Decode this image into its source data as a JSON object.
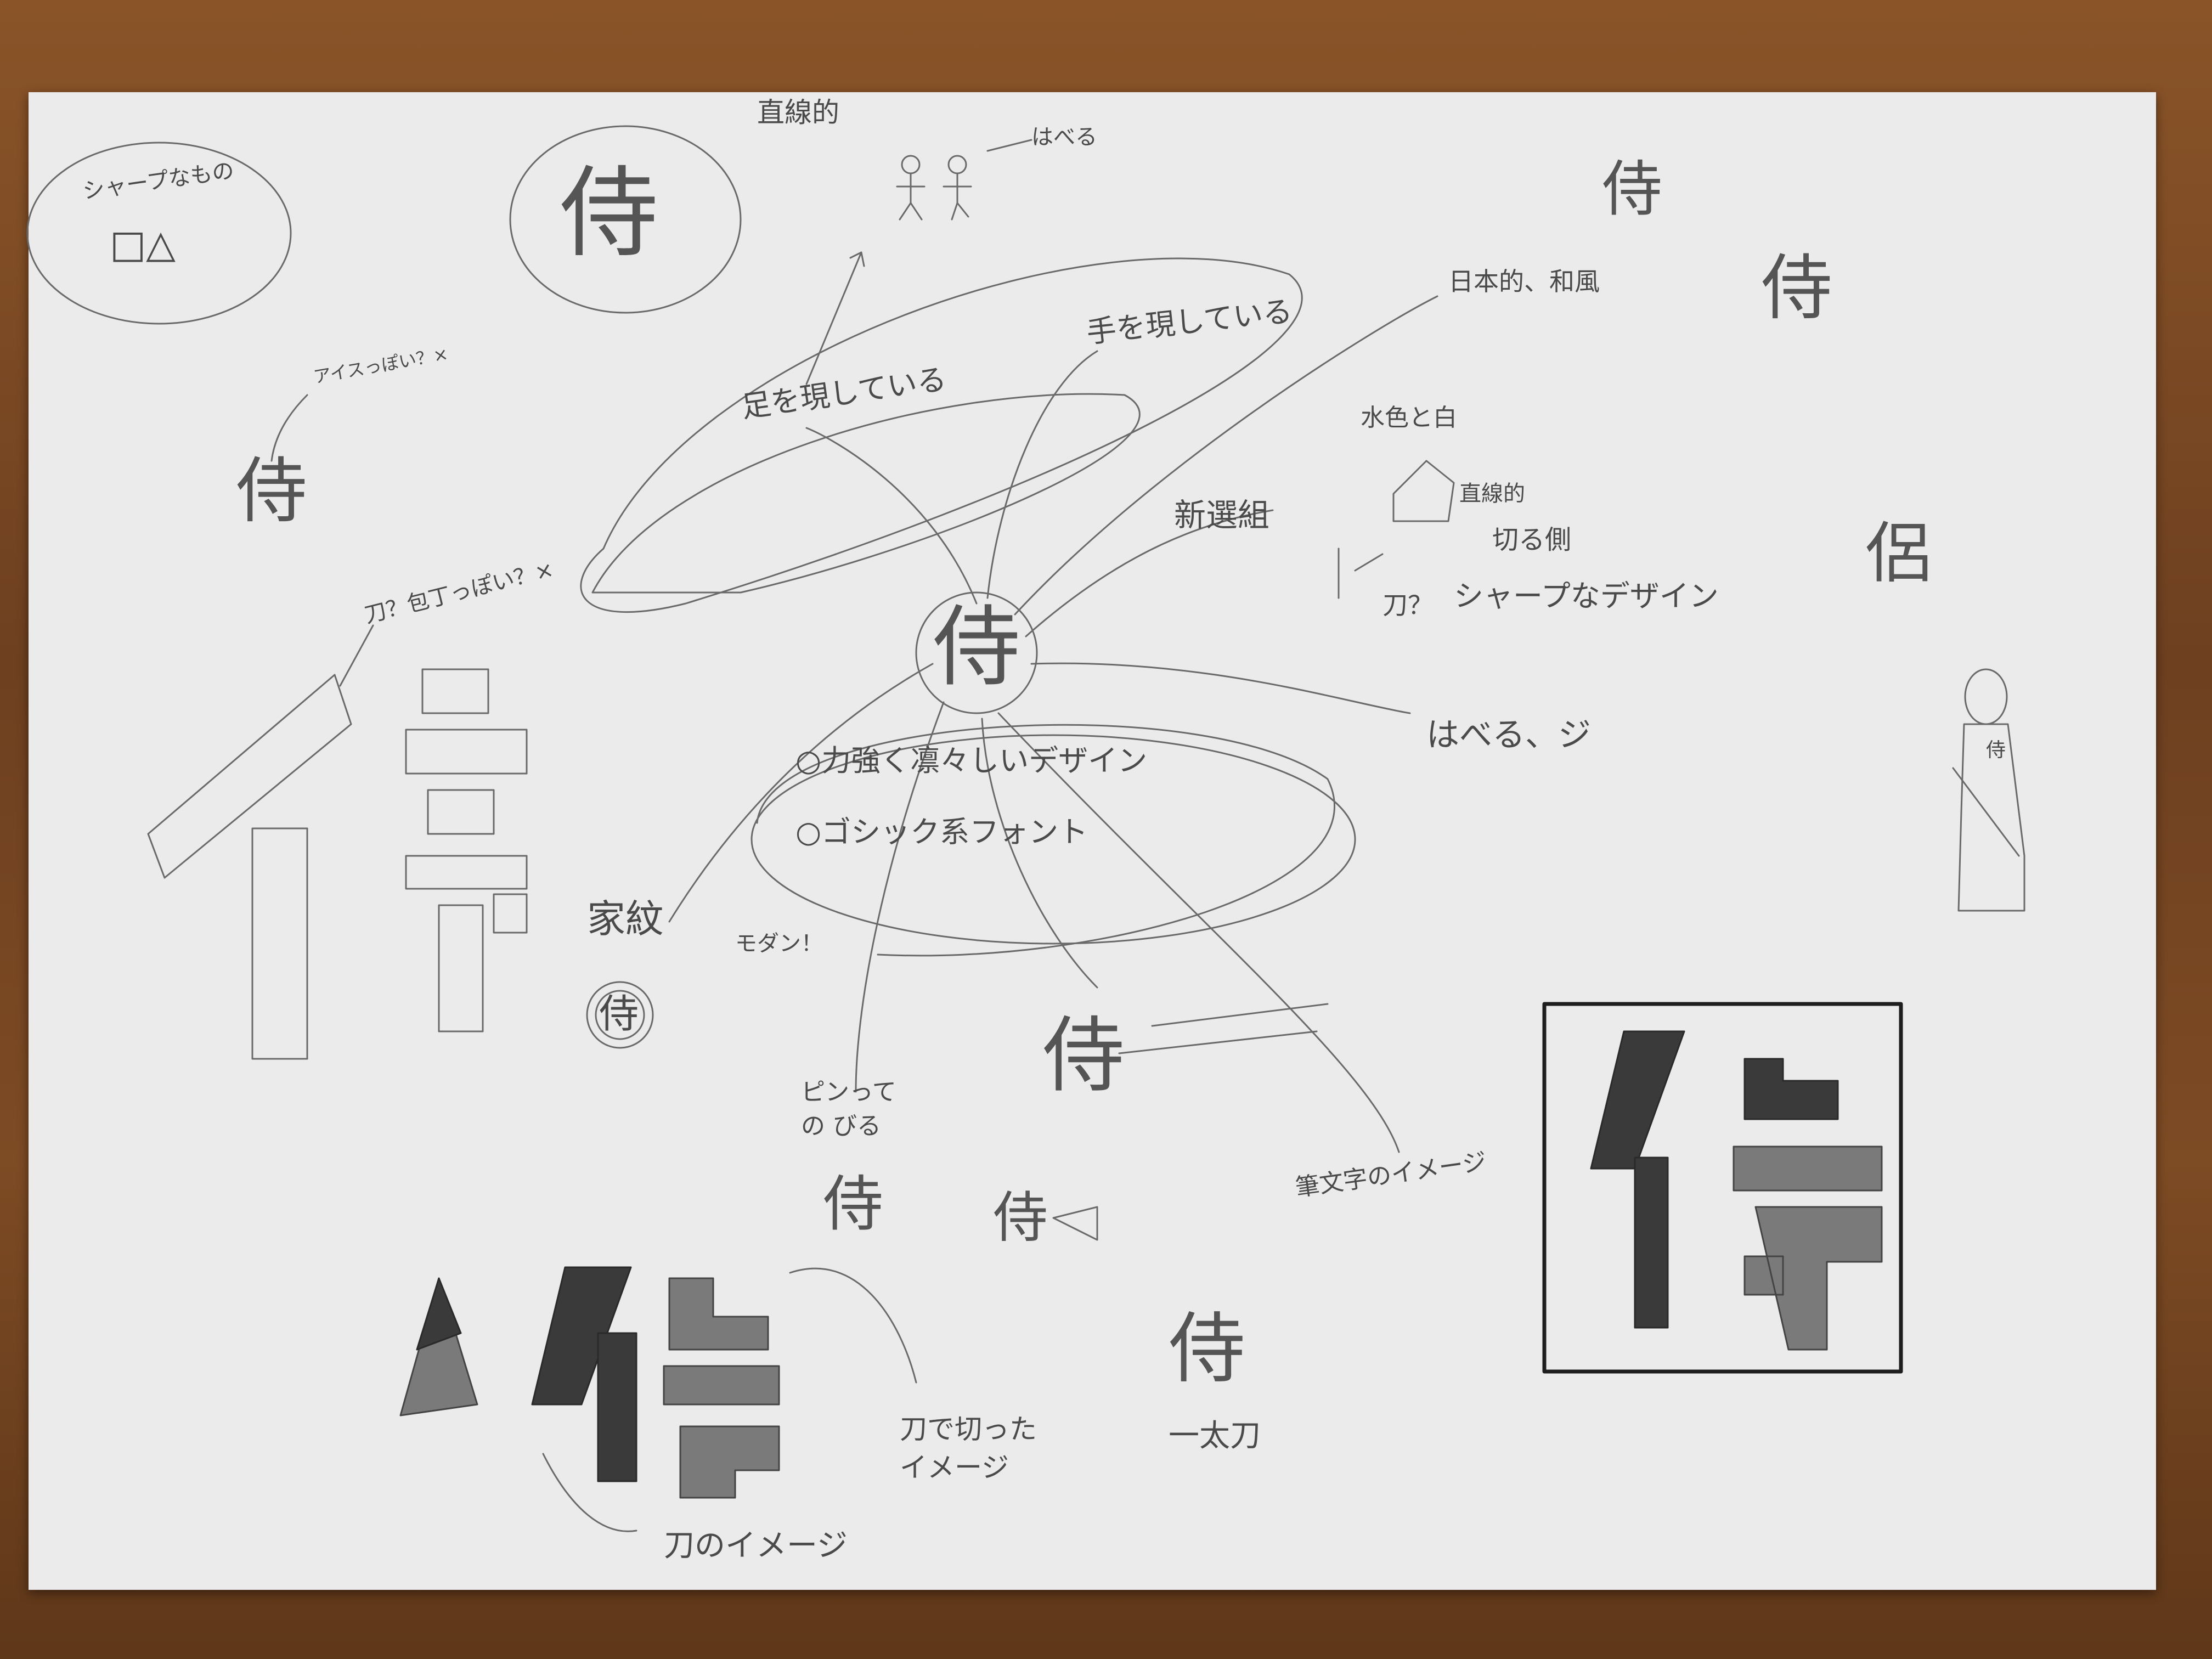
{
  "center_kanji": "侍",
  "labels": {
    "sharp_things": "シャープなもの",
    "sharp_shapes": "□△",
    "straight_lines_top": "直線的",
    "haberu_top": "はべる",
    "represents_legs": "足を現している",
    "represents_hands": "手を現している",
    "japanese_style": "日本的、和風",
    "ice_like": "アイスっぽい？×",
    "sword_wrap_like": "刀？包丁っぽい？×",
    "light_blue_white": "水色と白",
    "straight_lines_right": "直線的",
    "shinsengumi": "新選組",
    "cutting_side": "切る側",
    "sword": "刀？",
    "sharp_design": "シャープなデザイン",
    "haberu_ji": "はべる、ジ",
    "strong_dignified": "○力強く凛々しいデザイン",
    "gothic_font": "○ゴシック系フォント",
    "modern": "モダン！",
    "family_crest": "家紋",
    "stretch": "ピンっての びる",
    "brush_image": "筆文字のイメージ",
    "sword_cut_image": "刀で切った イメージ",
    "one_stroke_sword": "一太刀",
    "sword_image": "刀のイメージ"
  },
  "variants": [
    "侍",
    "侍",
    "侶",
    "侍",
    "侍",
    "侍",
    "侍",
    "侍"
  ],
  "colors": {
    "paper": "#ecebec",
    "pencil": "#5a5a5a",
    "dark_pencil": "#2a2a2a",
    "wood": "#7a4a22"
  }
}
